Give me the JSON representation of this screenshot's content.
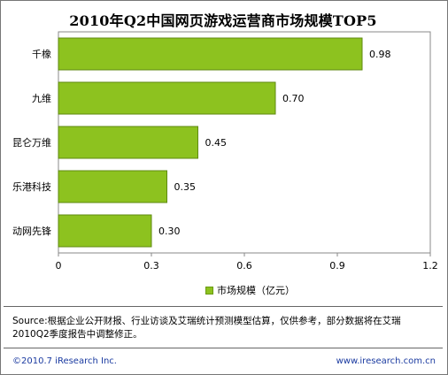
{
  "chart_data": {
    "type": "bar",
    "orientation": "horizontal",
    "title": "2010年Q2中国网页游戏运营商市场规模TOP5",
    "categories": [
      "千橡",
      "九维",
      "昆仑万维",
      "乐港科技",
      "动网先锋"
    ],
    "values": [
      0.98,
      0.7,
      0.45,
      0.35,
      0.3
    ],
    "value_labels": [
      "0.98",
      "0.70",
      "0.45",
      "0.35",
      "0.30"
    ],
    "xlim": [
      0,
      1.2
    ],
    "x_ticks": [
      "0",
      "0.3",
      "0.6",
      "0.9",
      "1.2"
    ],
    "x_tick_values": [
      0,
      0.3,
      0.6,
      0.9,
      1.2
    ],
    "series": [
      {
        "name": "市场规模（亿元）",
        "values": [
          0.98,
          0.7,
          0.45,
          0.35,
          0.3
        ]
      }
    ],
    "legend_position": "bottom",
    "grid": false,
    "bar_color": "#8dc21f"
  },
  "legend_label": "市场规模（亿元）",
  "source_text": "Source:根据企业公开财报、行业访谈及艾瑞统计预测模型估算，仅供参考，部分数据将在艾瑞2010Q2季度报告中调整修正。",
  "footer": {
    "copyright": "©2010.7 iResearch Inc.",
    "website": "www.iresearch.com.cn"
  }
}
